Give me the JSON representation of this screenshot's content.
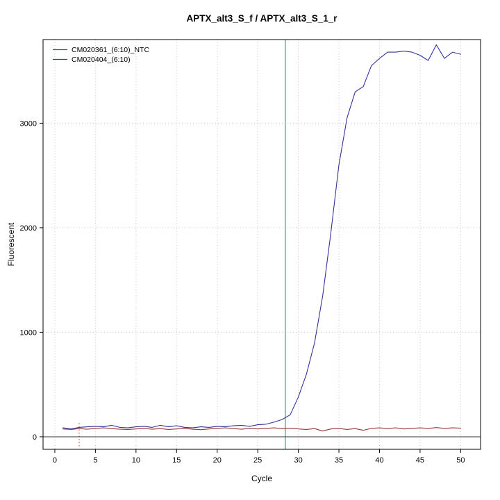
{
  "title": "APTX_alt3_S_f / APTX_alt3_S_1_r",
  "chart_data": {
    "type": "line",
    "title": "APTX_alt3_S_f / APTX_alt3_S_1_r",
    "xlabel": "Cycle",
    "ylabel": "Fluorescent",
    "xlim": [
      -1.45,
      52.45
    ],
    "ylim": [
      -120,
      3800
    ],
    "x_ticks": [
      0,
      5,
      10,
      15,
      20,
      25,
      30,
      35,
      40,
      45,
      50
    ],
    "y_ticks": [
      0,
      1000,
      2000,
      3000
    ],
    "grid": true,
    "grid_style": "dotted",
    "legend_position": "top-left",
    "x": [
      1,
      2,
      3,
      4,
      5,
      6,
      7,
      8,
      9,
      10,
      11,
      12,
      13,
      14,
      15,
      16,
      17,
      18,
      19,
      20,
      21,
      22,
      23,
      24,
      25,
      26,
      27,
      28,
      29,
      30,
      31,
      32,
      33,
      34,
      35,
      36,
      37,
      38,
      39,
      40,
      41,
      42,
      43,
      44,
      45,
      46,
      47,
      48,
      49,
      50
    ],
    "series": [
      {
        "name": "CM020361_(6:10)_NTC",
        "color": "#993333",
        "values": [
          75,
          70,
          78,
          72,
          80,
          85,
          78,
          72,
          70,
          75,
          80,
          72,
          78,
          70,
          75,
          80,
          72,
          68,
          75,
          80,
          85,
          78,
          72,
          80,
          75,
          80,
          85,
          78,
          82,
          75,
          70,
          78,
          55,
          75,
          80,
          70,
          78,
          62,
          80,
          85,
          78,
          85,
          75,
          80,
          85,
          80,
          88,
          80,
          85,
          82
        ]
      },
      {
        "name": "CM020404_(6:10)",
        "color": "#333399",
        "values": [
          85,
          75,
          90,
          95,
          100,
          95,
          110,
          90,
          85,
          95,
          100,
          90,
          110,
          95,
          105,
          90,
          85,
          95,
          90,
          100,
          95,
          105,
          110,
          100,
          115,
          120,
          140,
          165,
          210,
          380,
          600,
          900,
          1350,
          1950,
          2600,
          3050,
          3300,
          3350,
          3550,
          3620,
          3680,
          3680,
          3690,
          3680,
          3650,
          3600,
          3750,
          3620,
          3680,
          3660
        ]
      }
    ],
    "threshold_cycle_line": {
      "orientation": "vertical",
      "x": 28.4,
      "color": "#00dddd"
    },
    "baseline_line": {
      "orientation": "horizontal",
      "y": 0,
      "color": "#333333"
    },
    "marker_line": {
      "orientation": "vertical",
      "x": 3,
      "color": "#cc2222",
      "style": "dotted",
      "y_from": -90,
      "y_to": 150
    }
  }
}
